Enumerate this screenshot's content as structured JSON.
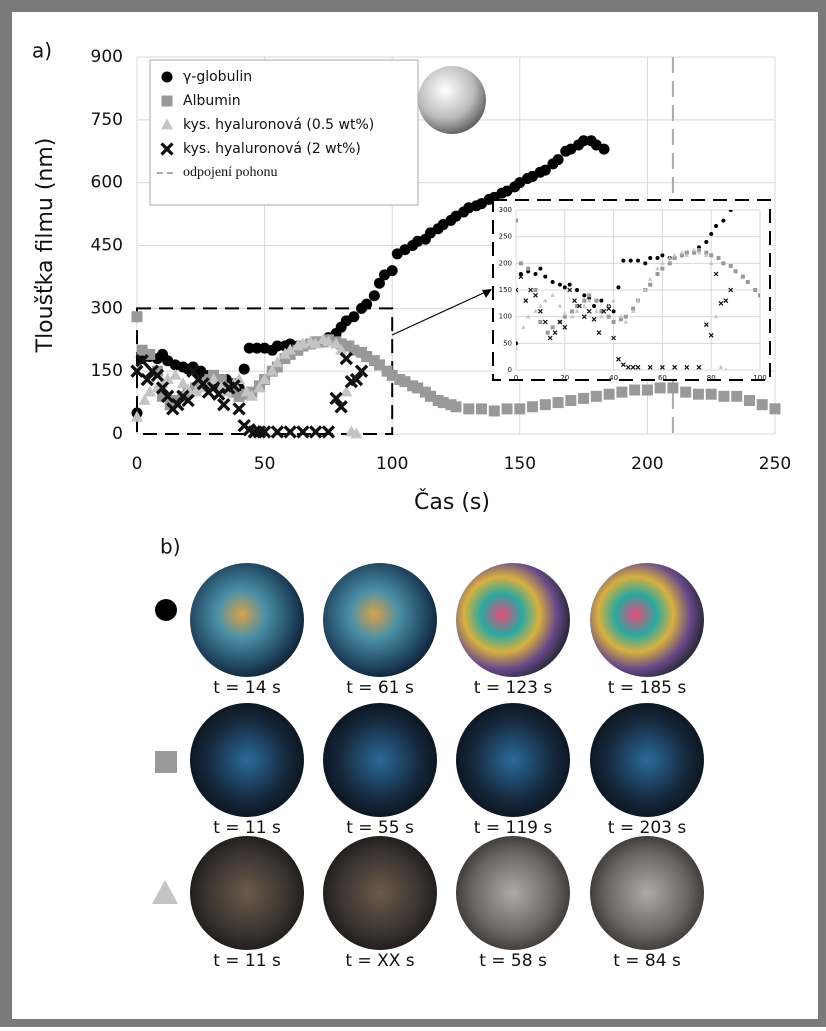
{
  "chart_data": {
    "type": "scatter",
    "panel_label": "a)",
    "x_label": "Čas (s)",
    "y_label": "Tloušťka filmu (nm)",
    "xlim": [
      0,
      250
    ],
    "ylim": [
      0,
      900
    ],
    "xticks": [
      0,
      50,
      100,
      150,
      200,
      250
    ],
    "yticks": [
      0,
      150,
      300,
      450,
      600,
      750,
      900
    ],
    "grid": true,
    "vline": {
      "x": 210,
      "label": "odpojení pohonu",
      "color": "#aaaaaa"
    },
    "series": [
      {
        "name": "γ-globulin",
        "color": "#000000",
        "marker": "circle",
        "x": [
          0,
          2,
          5,
          8,
          10,
          12,
          15,
          18,
          20,
          22,
          25,
          28,
          30,
          32,
          35,
          38,
          40,
          42,
          44,
          47,
          50,
          53,
          55,
          58,
          60,
          63,
          65,
          68,
          70,
          73,
          75,
          78,
          80,
          82,
          85,
          88,
          90,
          93,
          95,
          97,
          100,
          102,
          105,
          108,
          110,
          113,
          115,
          118,
          120,
          123,
          125,
          128,
          130,
          133,
          135,
          138,
          140,
          143,
          145,
          148,
          150,
          153,
          155,
          158,
          160,
          163,
          165,
          168,
          170,
          173,
          175,
          178,
          180,
          183
        ],
        "values": [
          50,
          180,
          185,
          180,
          190,
          175,
          165,
          160,
          155,
          160,
          150,
          140,
          135,
          120,
          130,
          120,
          110,
          155,
          205,
          205,
          205,
          200,
          210,
          210,
          215,
          210,
          210,
          215,
          220,
          220,
          230,
          240,
          255,
          270,
          280,
          300,
          310,
          330,
          360,
          380,
          390,
          430,
          440,
          450,
          460,
          465,
          480,
          490,
          500,
          510,
          520,
          530,
          540,
          545,
          550,
          560,
          565,
          575,
          580,
          590,
          600,
          610,
          615,
          625,
          630,
          645,
          655,
          675,
          680,
          690,
          700,
          700,
          690,
          680
        ]
      },
      {
        "name": "Albumin",
        "color": "#999999",
        "marker": "square",
        "x": [
          0,
          2,
          5,
          8,
          10,
          13,
          15,
          18,
          20,
          23,
          25,
          28,
          30,
          33,
          35,
          38,
          40,
          43,
          45,
          48,
          50,
          53,
          55,
          58,
          60,
          63,
          65,
          68,
          70,
          73,
          75,
          78,
          80,
          83,
          85,
          88,
          90,
          93,
          95,
          98,
          100,
          103,
          105,
          108,
          110,
          113,
          115,
          118,
          120,
          123,
          125,
          130,
          135,
          140,
          145,
          150,
          155,
          160,
          165,
          170,
          175,
          180,
          185,
          190,
          195,
          200,
          205,
          210,
          215,
          220,
          225,
          230,
          235,
          240,
          245,
          250
        ],
        "values": [
          280,
          200,
          190,
          150,
          90,
          70,
          80,
          90,
          100,
          110,
          120,
          130,
          140,
          130,
          110,
          100,
          90,
          95,
          100,
          115,
          130,
          150,
          160,
          180,
          190,
          200,
          210,
          215,
          220,
          220,
          225,
          220,
          215,
          210,
          200,
          195,
          185,
          175,
          165,
          150,
          140,
          130,
          125,
          115,
          110,
          100,
          90,
          80,
          75,
          70,
          65,
          60,
          60,
          55,
          60,
          60,
          65,
          70,
          75,
          80,
          85,
          90,
          95,
          100,
          105,
          105,
          110,
          110,
          100,
          95,
          95,
          90,
          90,
          80,
          70,
          60
        ]
      },
      {
        "name": "kys. hyaluronová (0.5 wt%)",
        "color": "#c4c4c4",
        "marker": "triangle",
        "x": [
          0,
          3,
          5,
          8,
          10,
          12,
          15,
          18,
          20,
          23,
          25,
          28,
          30,
          33,
          35,
          38,
          40,
          43,
          45,
          48,
          50,
          53,
          55,
          58,
          60,
          63,
          65,
          68,
          70,
          73,
          75,
          78,
          80,
          82,
          84,
          86
        ],
        "values": [
          40,
          80,
          100,
          110,
          120,
          130,
          140,
          120,
          105,
          100,
          110,
          120,
          130,
          110,
          100,
          120,
          130,
          100,
          90,
          110,
          130,
          150,
          170,
          190,
          200,
          210,
          215,
          220,
          215,
          225,
          220,
          215,
          200,
          100,
          5,
          0
        ]
      },
      {
        "name": "kys. hyaluronová (2 wt%)",
        "color": "#111111",
        "marker": "cross",
        "x": [
          0,
          2,
          4,
          6,
          8,
          10,
          12,
          14,
          16,
          18,
          20,
          22,
          24,
          26,
          28,
          30,
          32,
          34,
          36,
          38,
          40,
          42,
          44,
          46,
          48,
          50,
          55,
          60,
          65,
          70,
          75,
          78,
          80,
          82,
          84,
          86,
          88
        ],
        "values": [
          150,
          175,
          130,
          150,
          140,
          110,
          90,
          60,
          70,
          90,
          80,
          150,
          130,
          120,
          100,
          110,
          95,
          70,
          110,
          115,
          60,
          20,
          10,
          5,
          5,
          5,
          5,
          5,
          5,
          5,
          5,
          85,
          65,
          180,
          125,
          130,
          150
        ]
      }
    ],
    "inset": {
      "xlim": [
        0,
        100
      ],
      "ylim": [
        0,
        300
      ],
      "xticks": [
        0,
        20,
        40,
        60,
        80,
        100
      ],
      "yticks": [
        0,
        50,
        100,
        150,
        200,
        250,
        300
      ]
    }
  },
  "panel_b": {
    "label": "b)",
    "rows": [
      {
        "captions": [
          "t = 14 s",
          "t = 61 s",
          "t = 123 s",
          "t = 185 s"
        ]
      },
      {
        "captions": [
          "t = 11 s",
          "t = 55 s",
          "t = 119 s",
          "t = 203 s"
        ]
      },
      {
        "captions": [
          "t = 11 s",
          "t = XX s",
          "t = 58 s",
          "t = 84 s"
        ]
      }
    ]
  }
}
